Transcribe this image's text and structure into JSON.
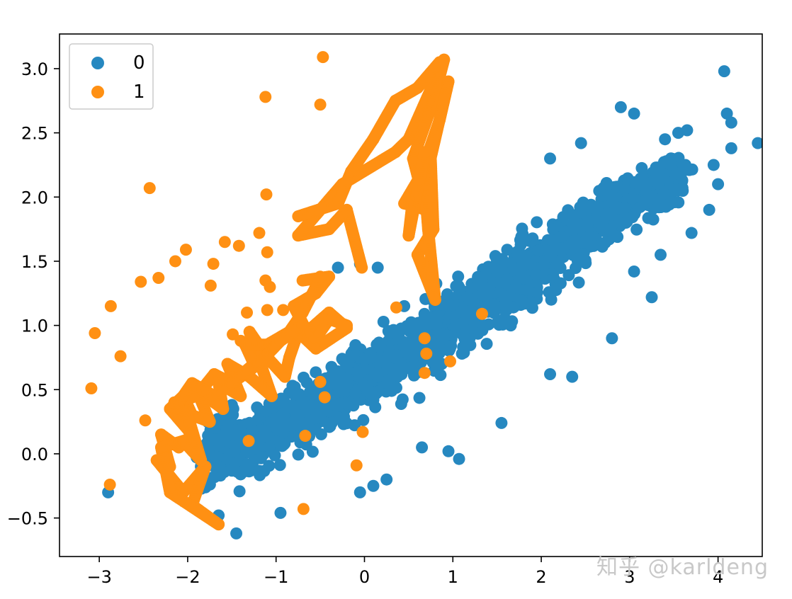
{
  "chart_data": {
    "type": "scatter",
    "title": "",
    "xlabel": "",
    "ylabel": "",
    "xlim": [
      -3.45,
      4.5
    ],
    "ylim": [
      -0.8,
      3.27
    ],
    "x_ticks": [
      -3,
      -2,
      -1,
      0,
      1,
      2,
      3,
      4
    ],
    "x_tick_labels": [
      "−3",
      "−2",
      "−1",
      "0",
      "1",
      "2",
      "3",
      "4"
    ],
    "y_ticks": [
      -0.5,
      0.0,
      0.5,
      1.0,
      1.5,
      2.0,
      2.5,
      3.0
    ],
    "y_tick_labels": [
      "−0.5",
      "0.0",
      "0.5",
      "1.0",
      "1.5",
      "2.0",
      "2.5",
      "3.0"
    ],
    "grid": false,
    "legend_position": "top-left",
    "series": [
      {
        "name": "0",
        "color": "#2688c0",
        "cloud": [
          [
            -1.6,
            0.05,
            0.35,
            0.4
          ],
          [
            -1.1,
            0.15,
            0.45,
            0.4
          ],
          [
            -0.6,
            0.35,
            0.5,
            0.45
          ],
          [
            -0.1,
            0.55,
            0.55,
            0.45
          ],
          [
            0.4,
            0.75,
            0.55,
            0.45
          ],
          [
            0.9,
            1.0,
            0.55,
            0.45
          ],
          [
            1.4,
            1.2,
            0.5,
            0.45
          ],
          [
            1.9,
            1.45,
            0.5,
            0.45
          ],
          [
            2.4,
            1.7,
            0.45,
            0.4
          ],
          [
            2.9,
            1.95,
            0.4,
            0.35
          ],
          [
            3.4,
            2.1,
            0.35,
            0.3
          ]
        ],
        "outliers": [
          [
            -2.9,
            -0.3
          ],
          [
            -1.45,
            -0.62
          ],
          [
            -0.95,
            -0.46
          ],
          [
            -0.05,
            -0.3
          ],
          [
            0.1,
            -0.25
          ],
          [
            0.25,
            -0.2
          ],
          [
            0.65,
            0.05
          ],
          [
            0.95,
            0.02
          ],
          [
            1.07,
            -0.04
          ],
          [
            1.55,
            0.24
          ],
          [
            2.35,
            0.6
          ],
          [
            2.1,
            0.62
          ],
          [
            2.8,
            0.9
          ],
          [
            3.25,
            1.22
          ],
          [
            3.05,
            1.42
          ],
          [
            3.35,
            1.55
          ],
          [
            2.1,
            2.3
          ],
          [
            2.45,
            2.42
          ],
          [
            2.9,
            2.7
          ],
          [
            3.05,
            2.65
          ],
          [
            3.4,
            2.45
          ],
          [
            3.55,
            2.5
          ],
          [
            3.65,
            2.52
          ],
          [
            4.07,
            2.98
          ],
          [
            4.1,
            2.65
          ],
          [
            4.15,
            2.58
          ],
          [
            4.15,
            2.38
          ],
          [
            4.45,
            2.42
          ],
          [
            3.95,
            2.25
          ],
          [
            4.0,
            2.1
          ],
          [
            3.9,
            1.9
          ],
          [
            3.7,
            1.72
          ],
          [
            3.35,
            1.95
          ],
          [
            -0.3,
            1.45
          ],
          [
            -0.05,
            1.48
          ],
          [
            0.15,
            1.45
          ],
          [
            0.45,
            1.15
          ],
          [
            -1.4,
            0.62
          ],
          [
            -1.5,
            0.38
          ],
          [
            -1.65,
            -0.48
          ]
        ]
      },
      {
        "name": "1",
        "color": "#ff9013",
        "points": [
          [
            -0.47,
            3.09
          ],
          [
            -1.12,
            2.78
          ],
          [
            -0.5,
            2.72
          ],
          [
            -2.43,
            2.07
          ],
          [
            -1.11,
            2.02
          ],
          [
            -1.19,
            1.72
          ],
          [
            -1.58,
            1.65
          ],
          [
            -1.42,
            1.62
          ],
          [
            -1.1,
            1.57
          ],
          [
            -2.02,
            1.59
          ],
          [
            -2.14,
            1.5
          ],
          [
            -1.71,
            1.48
          ],
          [
            -2.33,
            1.37
          ],
          [
            -2.53,
            1.34
          ],
          [
            -1.74,
            1.31
          ],
          [
            -1.12,
            1.35
          ],
          [
            -1.07,
            1.3
          ],
          [
            -2.87,
            1.15
          ],
          [
            -1.33,
            1.1
          ],
          [
            -1.1,
            1.12
          ],
          [
            -0.92,
            1.12
          ],
          [
            -3.05,
            0.94
          ],
          [
            -1.49,
            0.93
          ],
          [
            -1.4,
            0.88
          ],
          [
            -2.76,
            0.76
          ],
          [
            -3.09,
            0.51
          ],
          [
            -0.5,
            0.56
          ],
          [
            -0.45,
            0.44
          ],
          [
            -2.48,
            0.26
          ],
          [
            -1.31,
            0.1
          ],
          [
            -0.67,
            0.14
          ],
          [
            -0.02,
            0.17
          ],
          [
            -0.09,
            -0.09
          ],
          [
            -2.88,
            -0.24
          ],
          [
            -0.69,
            -0.43
          ],
          [
            0.36,
            1.14
          ],
          [
            0.68,
            0.9
          ],
          [
            0.7,
            0.78
          ],
          [
            0.68,
            0.63
          ],
          [
            0.97,
            0.72
          ],
          [
            1.33,
            1.09
          ]
        ],
        "paths": [
          [
            [
              -0.03,
              1.45
            ],
            [
              -0.2,
              1.9
            ],
            [
              -0.4,
              1.75
            ],
            [
              -0.75,
              1.7
            ],
            [
              -0.25,
              2.1
            ],
            [
              0.35,
              2.35
            ],
            [
              0.5,
              2.45
            ],
            [
              0.9,
              3.07
            ],
            [
              0.78,
              2.75
            ],
            [
              0.55,
              2.3
            ],
            [
              0.7,
              1.9
            ],
            [
              0.45,
              1.95
            ],
            [
              0.75,
              2.3
            ],
            [
              0.78,
              1.75
            ],
            [
              0.6,
              1.55
            ],
            [
              0.8,
              1.2
            ],
            [
              0.72,
              1.75
            ],
            [
              0.68,
              2.1
            ],
            [
              0.95,
              2.9
            ],
            [
              0.85,
              2.6
            ],
            [
              0.55,
              2.0
            ],
            [
              0.5,
              1.7
            ],
            [
              0.68,
              2.35
            ]
          ],
          [
            [
              -0.75,
              1.85
            ],
            [
              -0.3,
              1.95
            ],
            [
              -0.15,
              2.2
            ],
            [
              0.1,
              2.45
            ],
            [
              0.35,
              2.75
            ],
            [
              0.6,
              2.85
            ],
            [
              0.85,
              3.05
            ]
          ],
          [
            [
              -0.7,
              1.35
            ],
            [
              -0.4,
              1.38
            ],
            [
              -0.55,
              1.25
            ],
            [
              -0.8,
              1.15
            ],
            [
              -0.65,
              0.95
            ],
            [
              -0.4,
              1.1
            ],
            [
              -0.2,
              0.98
            ],
            [
              -0.55,
              0.82
            ],
            [
              -0.75,
              0.95
            ],
            [
              -0.85,
              0.75
            ],
            [
              -0.9,
              0.6
            ],
            [
              -1.1,
              0.75
            ],
            [
              -1.3,
              0.95
            ],
            [
              -1.15,
              0.65
            ],
            [
              -1.05,
              0.45
            ],
            [
              -1.3,
              0.6
            ],
            [
              -1.55,
              0.7
            ],
            [
              -1.4,
              0.45
            ],
            [
              -1.65,
              0.55
            ],
            [
              -1.6,
              0.35
            ],
            [
              -1.9,
              0.5
            ],
            [
              -1.75,
              0.25
            ],
            [
              -1.95,
              0.3
            ],
            [
              -2.05,
              0.45
            ],
            [
              -2.2,
              0.35
            ],
            [
              -1.95,
              0.15
            ],
            [
              -2.1,
              0.05
            ],
            [
              -2.3,
              0.15
            ],
            [
              -2.2,
              -0.1
            ],
            [
              -2.35,
              -0.05
            ],
            [
              -2.05,
              -0.3
            ],
            [
              -1.8,
              -0.1
            ],
            [
              -1.95,
              -0.4
            ],
            [
              -1.65,
              -0.55
            ],
            [
              -2.2,
              -0.3
            ],
            [
              -2.3,
              0.05
            ],
            [
              -2.05,
              0.1
            ],
            [
              -1.85,
              -0.05
            ],
            [
              -2.0,
              0.3
            ],
            [
              -2.15,
              0.4
            ],
            [
              -1.9,
              0.45
            ],
            [
              -1.7,
              0.62
            ],
            [
              -1.5,
              0.55
            ],
            [
              -1.25,
              0.7
            ],
            [
              -1.35,
              0.85
            ],
            [
              -1.1,
              0.85
            ],
            [
              -0.85,
              0.95
            ],
            [
              -0.7,
              1.1
            ],
            [
              -0.55,
              1.3
            ],
            [
              -0.5,
              1.38
            ]
          ],
          [
            [
              -2.1,
              0.4
            ],
            [
              -1.95,
              0.55
            ],
            [
              -1.7,
              0.45
            ],
            [
              -1.5,
              0.55
            ],
            [
              -1.2,
              0.7
            ],
            [
              -0.95,
              0.88
            ],
            [
              -0.7,
              1.0
            ],
            [
              -0.55,
              0.9
            ],
            [
              -0.4,
              1.05
            ],
            [
              -0.2,
              1.0
            ]
          ]
        ]
      }
    ]
  },
  "watermark": "知乎 @karldeng"
}
